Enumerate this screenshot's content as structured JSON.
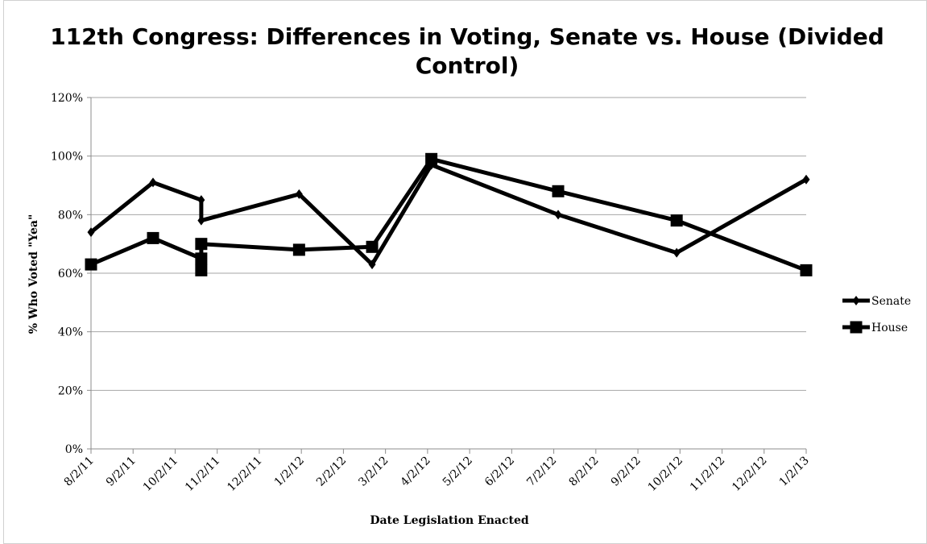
{
  "chart_data": {
    "type": "line",
    "title_lines": [
      "112th Congress: Differences in Voting, Senate vs. House (Divided",
      "Control)"
    ],
    "xlabel": "Date Legislation Enacted",
    "ylabel": "% Who Voted \"Yea\"",
    "x_type": "date",
    "xlim": [
      "2011-08-02",
      "2013-01-02"
    ],
    "x_ticks": [
      "8/2/11",
      "9/2/11",
      "10/2/11",
      "11/2/11",
      "12/2/11",
      "1/2/12",
      "2/2/12",
      "3/2/12",
      "4/2/12",
      "5/2/12",
      "6/2/12",
      "7/2/12",
      "8/2/12",
      "9/2/12",
      "10/2/12",
      "11/2/12",
      "12/2/12",
      "1/2/13"
    ],
    "ylim": [
      0,
      120
    ],
    "y_ticks": [
      "0%",
      "20%",
      "40%",
      "60%",
      "80%",
      "100%",
      "120%"
    ],
    "grid": "horizontal",
    "legend_position": "right",
    "series": [
      {
        "name": "Senate",
        "marker": "diamond",
        "color": "#000000",
        "points": [
          {
            "x": "2011-08-02",
            "y": 74
          },
          {
            "x": "2011-09-16",
            "y": 91
          },
          {
            "x": "2011-10-21",
            "y": 85
          },
          {
            "x": "2011-10-21",
            "y": 78
          },
          {
            "x": "2011-12-31",
            "y": 87
          },
          {
            "x": "2012-02-22",
            "y": 63
          },
          {
            "x": "2012-04-05",
            "y": 97
          },
          {
            "x": "2012-07-06",
            "y": 80
          },
          {
            "x": "2012-09-30",
            "y": 67
          },
          {
            "x": "2013-01-02",
            "y": 92
          }
        ]
      },
      {
        "name": "House",
        "marker": "square",
        "color": "#000000",
        "points": [
          {
            "x": "2011-08-02",
            "y": 63
          },
          {
            "x": "2011-09-16",
            "y": 72
          },
          {
            "x": "2011-10-21",
            "y": 65
          },
          {
            "x": "2011-10-21",
            "y": 61
          },
          {
            "x": "2011-10-21",
            "y": 70
          },
          {
            "x": "2011-12-31",
            "y": 68
          },
          {
            "x": "2012-02-22",
            "y": 69
          },
          {
            "x": "2012-04-05",
            "y": 99
          },
          {
            "x": "2012-07-06",
            "y": 88
          },
          {
            "x": "2012-09-30",
            "y": 78
          },
          {
            "x": "2013-01-02",
            "y": 61
          }
        ]
      }
    ]
  }
}
